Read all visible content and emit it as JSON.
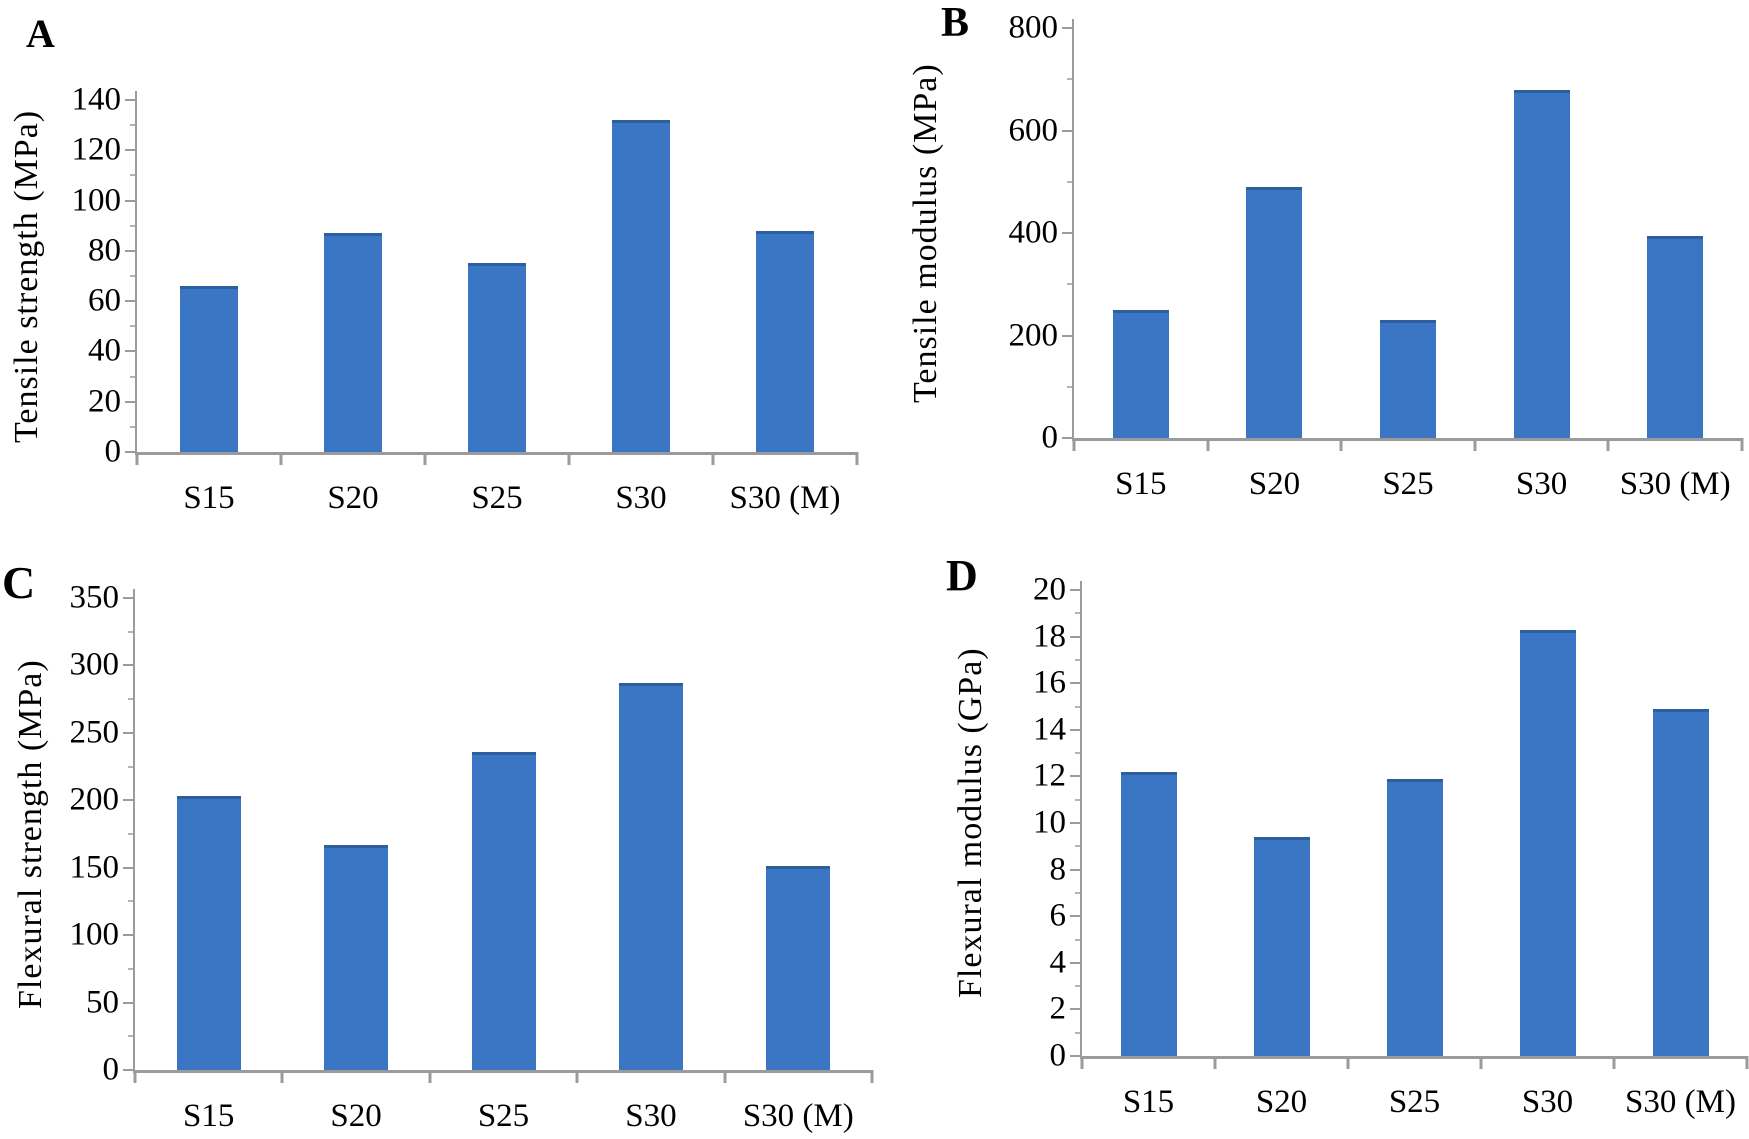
{
  "figure_type": "four-panel bar chart figure",
  "colors": {
    "bar_fill": "#3b76c4",
    "bar_top_edge": "#2d5f9f",
    "axis_line": "#9b9b9b",
    "text": "#000000",
    "background": "#ffffff"
  },
  "chart_data": [
    {
      "panel_label": "A",
      "type": "bar",
      "title": "",
      "ylabel": "Tensile strength (MPa)",
      "xlabel": "",
      "categories": [
        "S15",
        "S20",
        "S25",
        "S30",
        "S30 (M)"
      ],
      "values": [
        66,
        87,
        75,
        132,
        88
      ],
      "ylim": [
        0,
        140
      ],
      "yticks": [
        0,
        20,
        40,
        60,
        80,
        100,
        120,
        140
      ],
      "grid": false,
      "legend": null
    },
    {
      "panel_label": "B",
      "type": "bar",
      "title": "",
      "ylabel": "Tensile modulus (MPa)",
      "xlabel": "",
      "categories": [
        "S15",
        "S20",
        "S25",
        "S30",
        "S30 (M)"
      ],
      "values": [
        250,
        490,
        230,
        680,
        395
      ],
      "ylim": [
        0,
        800
      ],
      "yticks": [
        0,
        200,
        400,
        600,
        800
      ],
      "grid": false,
      "legend": null
    },
    {
      "panel_label": "C",
      "type": "bar",
      "title": "",
      "ylabel": "Flexural strength (MPa)",
      "xlabel": "",
      "categories": [
        "S15",
        "S20",
        "S25",
        "S30",
        "S30 (M)"
      ],
      "values": [
        203,
        167,
        236,
        287,
        151
      ],
      "ylim": [
        0,
        350
      ],
      "yticks": [
        0,
        50,
        100,
        150,
        200,
        250,
        300,
        350
      ],
      "grid": false,
      "legend": null
    },
    {
      "panel_label": "D",
      "type": "bar",
      "title": "",
      "ylabel": "Flexural modulus (GPa)",
      "xlabel": "",
      "categories": [
        "S15",
        "S20",
        "S25",
        "S30",
        "S30 (M)"
      ],
      "values": [
        12.2,
        9.4,
        11.9,
        18.3,
        14.9
      ],
      "ylim": [
        0,
        20
      ],
      "yticks": [
        0,
        2,
        4,
        6,
        8,
        10,
        12,
        14,
        16,
        18,
        20
      ],
      "grid": false,
      "legend": null
    }
  ]
}
